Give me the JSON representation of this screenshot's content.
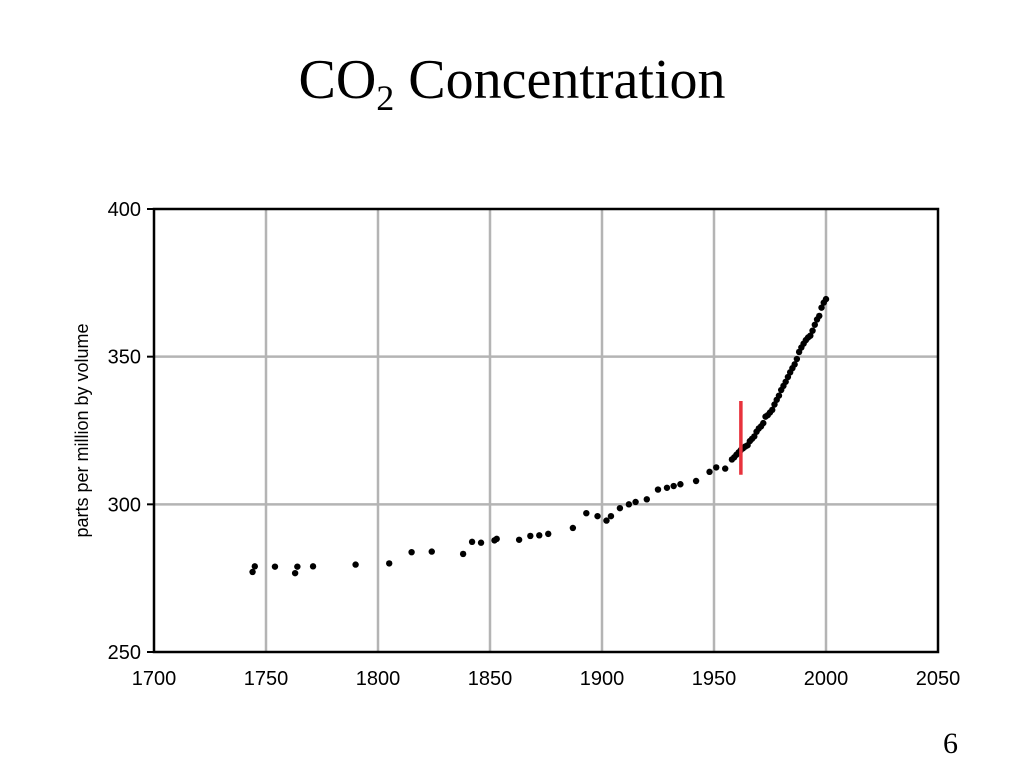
{
  "title": {
    "main": "CO",
    "subscript": "2",
    "rest": " Concentration"
  },
  "page_number": "6",
  "colors": {
    "grid": "#b4b4b4",
    "axis": "#000000",
    "points": "#000000",
    "marker": "#e8323c"
  },
  "chart_data": {
    "type": "scatter",
    "title": "CO2 Concentration",
    "xlabel": "",
    "ylabel": "parts per million by volume",
    "xlim": [
      1700,
      2050
    ],
    "ylim": [
      250,
      400
    ],
    "x_ticks": [
      1700,
      1750,
      1800,
      1850,
      1900,
      1950,
      2000,
      2050
    ],
    "y_ticks": [
      250,
      300,
      350,
      400
    ],
    "grid": true,
    "vertical_marker": {
      "x": 1962,
      "y_range": [
        310,
        335
      ]
    },
    "series": [
      {
        "points": [
          [
            1744,
            277.1
          ],
          [
            1745,
            279.0
          ],
          [
            1754,
            278.9
          ],
          [
            1763,
            276.7
          ],
          [
            1764,
            278.9
          ],
          [
            1771,
            279.0
          ],
          [
            1790,
            279.6
          ],
          [
            1805,
            280.0
          ],
          [
            1815,
            283.8
          ],
          [
            1824,
            284.0
          ],
          [
            1838,
            283.2
          ],
          [
            1842,
            287.3
          ],
          [
            1846,
            287.0
          ],
          [
            1852,
            287.8
          ],
          [
            1853,
            288.3
          ],
          [
            1863,
            288.0
          ],
          [
            1868,
            289.3
          ],
          [
            1872,
            289.5
          ],
          [
            1876,
            290.0
          ],
          [
            1887,
            292.0
          ],
          [
            1893,
            297.0
          ],
          [
            1898,
            296.0
          ],
          [
            1902,
            294.5
          ],
          [
            1904,
            296.0
          ],
          [
            1908,
            298.7
          ],
          [
            1912,
            300.0
          ],
          [
            1915,
            300.8
          ],
          [
            1920,
            301.7
          ],
          [
            1925,
            305.0
          ],
          [
            1929,
            305.6
          ],
          [
            1932,
            306.2
          ],
          [
            1935,
            306.8
          ],
          [
            1942,
            307.9
          ],
          [
            1948,
            311.0
          ],
          [
            1951,
            312.5
          ],
          [
            1955,
            312.1
          ],
          [
            1958,
            315.2
          ],
          [
            1959,
            315.9
          ],
          [
            1960,
            316.8
          ],
          [
            1961,
            317.6
          ],
          [
            1962,
            318.4
          ],
          [
            1963,
            319.0
          ],
          [
            1964,
            319.6
          ],
          [
            1965,
            320.0
          ],
          [
            1966,
            321.4
          ],
          [
            1967,
            322.2
          ],
          [
            1968,
            323.0
          ],
          [
            1969,
            324.6
          ],
          [
            1970,
            325.7
          ],
          [
            1971,
            326.4
          ],
          [
            1972,
            327.5
          ],
          [
            1973,
            329.7
          ],
          [
            1974,
            330.2
          ],
          [
            1975,
            331.1
          ],
          [
            1976,
            332.0
          ],
          [
            1977,
            333.8
          ],
          [
            1978,
            335.4
          ],
          [
            1979,
            336.8
          ],
          [
            1980,
            338.7
          ],
          [
            1981,
            340.1
          ],
          [
            1982,
            341.5
          ],
          [
            1983,
            343.1
          ],
          [
            1984,
            344.7
          ],
          [
            1985,
            346.1
          ],
          [
            1986,
            347.4
          ],
          [
            1987,
            349.2
          ],
          [
            1988,
            351.6
          ],
          [
            1989,
            353.1
          ],
          [
            1990,
            354.4
          ],
          [
            1991,
            355.6
          ],
          [
            1992,
            356.5
          ],
          [
            1993,
            357.1
          ],
          [
            1994,
            358.8
          ],
          [
            1995,
            360.8
          ],
          [
            1996,
            362.6
          ],
          [
            1997,
            363.8
          ],
          [
            1998,
            366.6
          ],
          [
            1999,
            368.3
          ],
          [
            2000,
            369.5
          ]
        ]
      }
    ]
  }
}
